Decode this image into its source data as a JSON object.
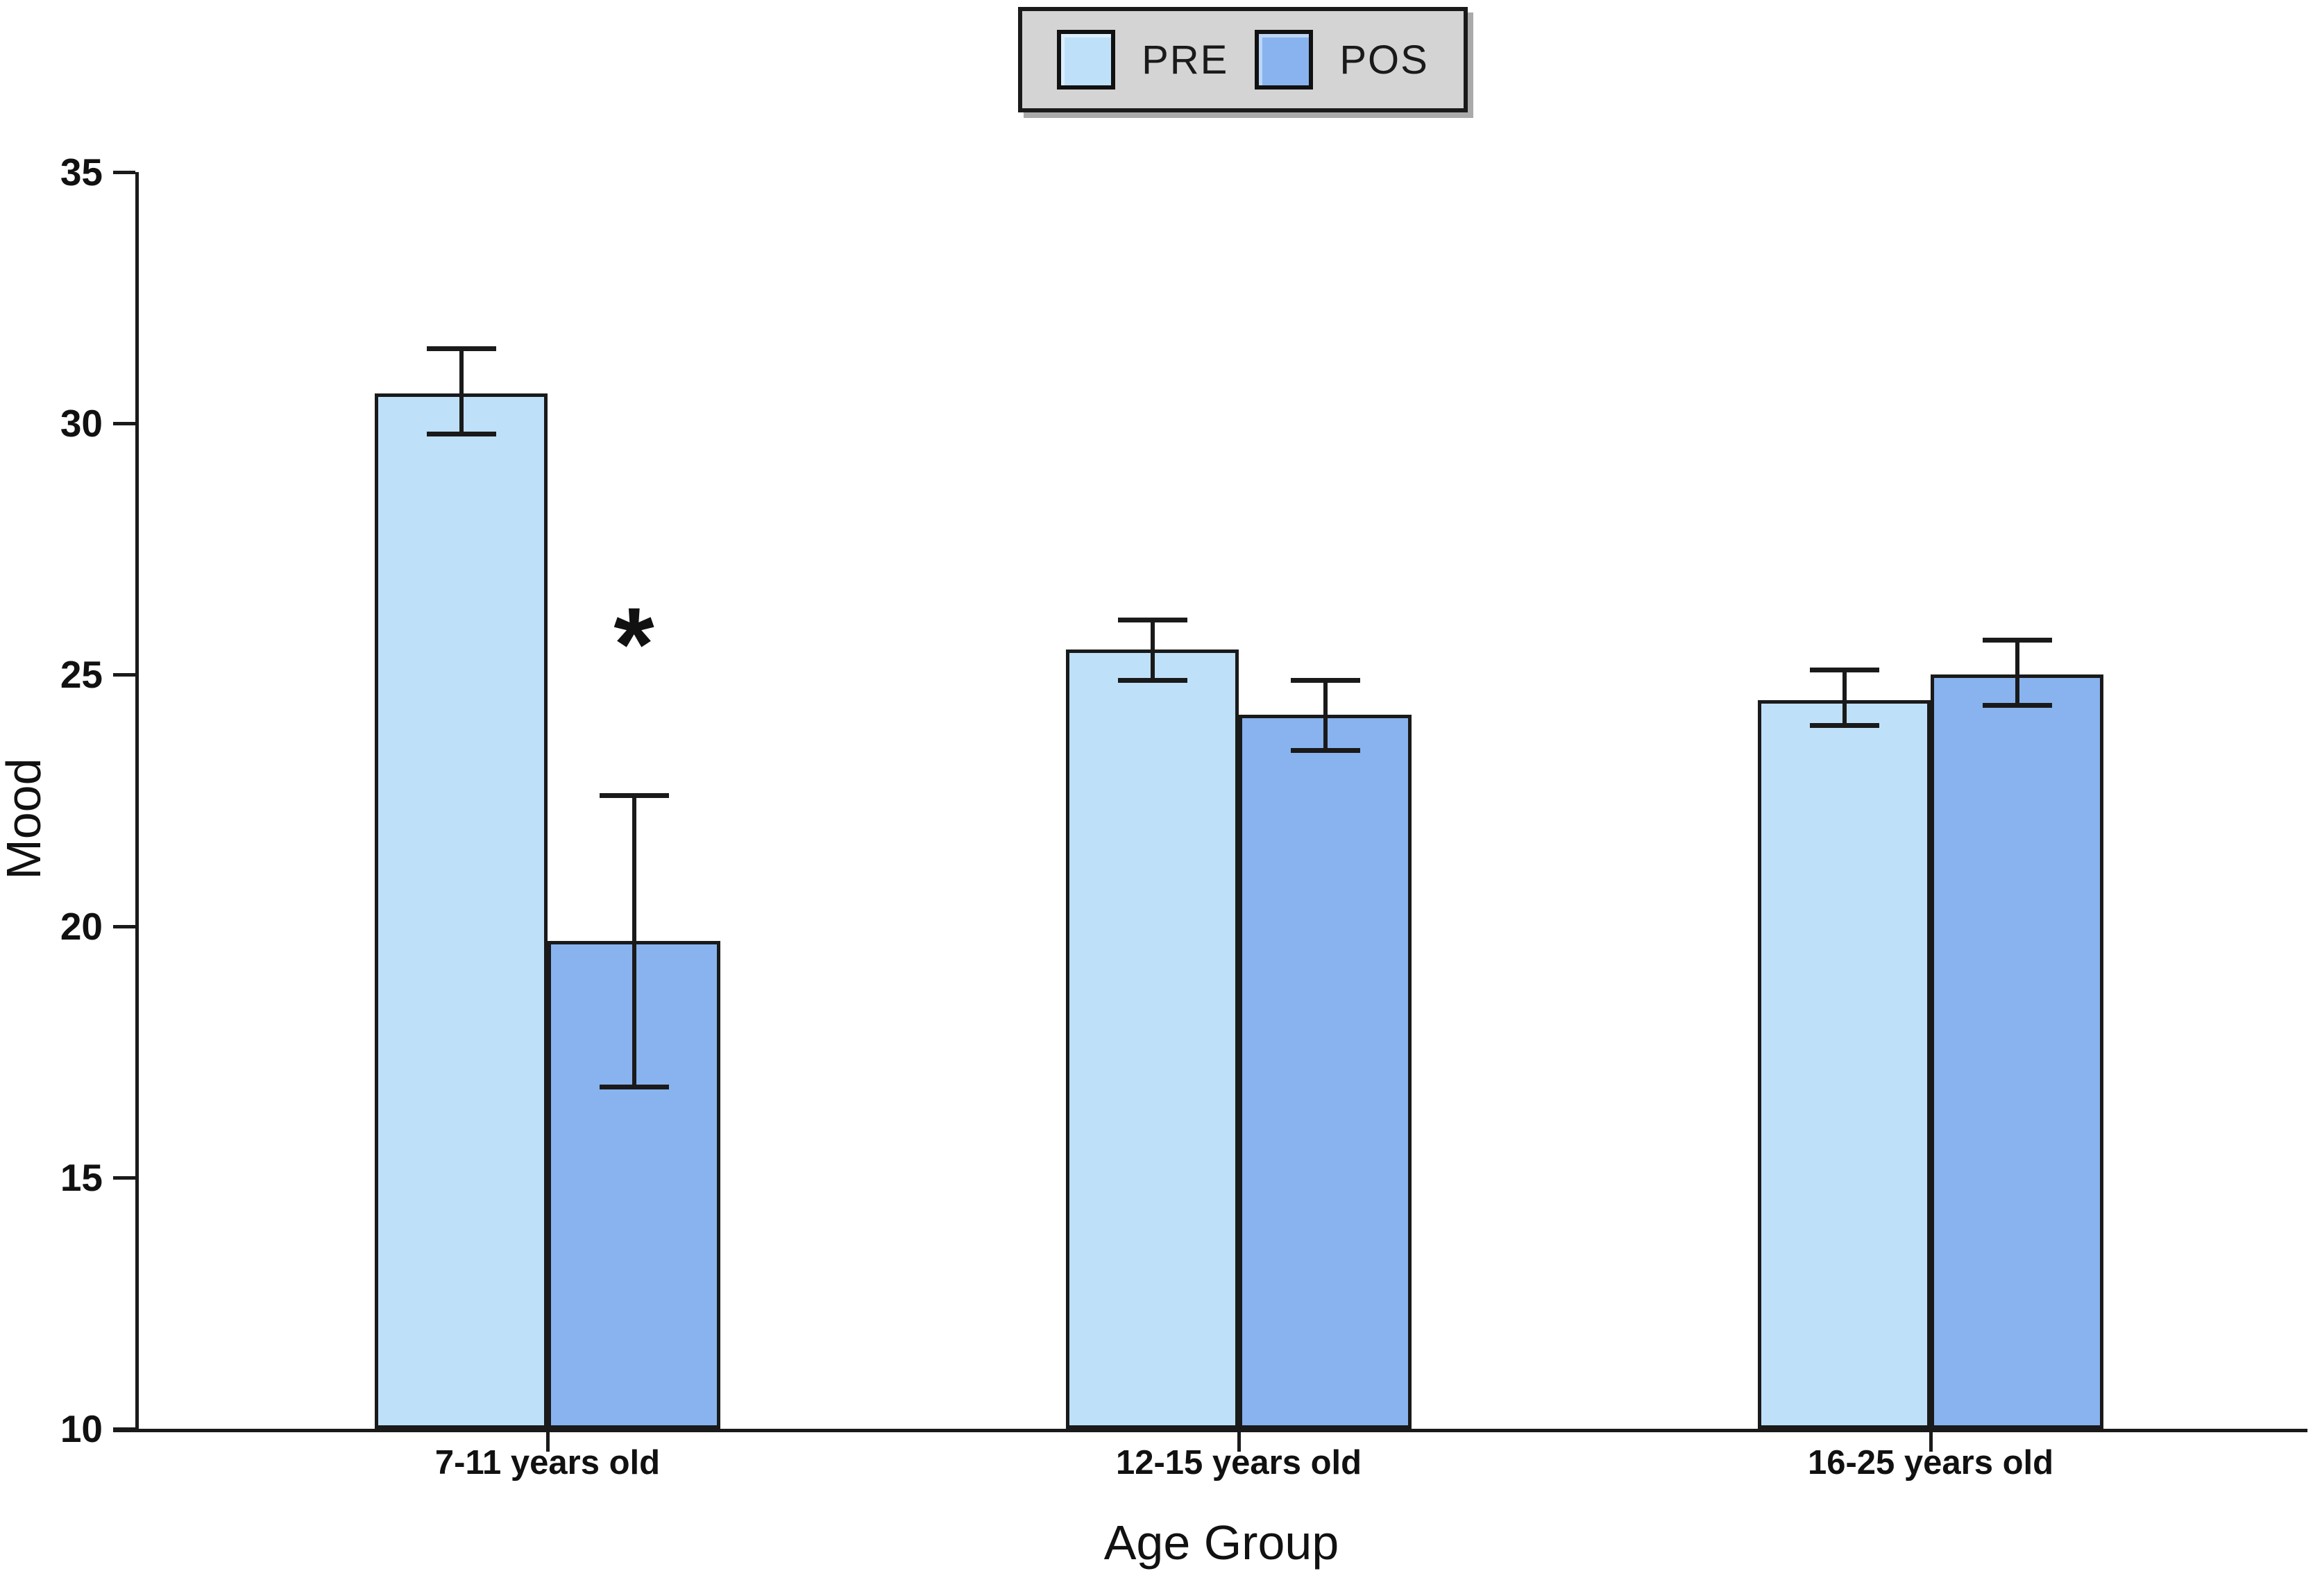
{
  "figure": {
    "background": "#ffffff",
    "text_color": "#111111"
  },
  "legend": {
    "position": "top-center",
    "background": "#d4d4d4",
    "border_color": "#1a1a1a",
    "items": [
      {
        "label": "PRE",
        "color": "#bfe0f9"
      },
      {
        "label": "POS",
        "color": "#88b3ee"
      }
    ]
  },
  "chart_data": {
    "type": "bar",
    "title": "",
    "xlabel": "Age Group",
    "ylabel": "Mood",
    "ylim": [
      10,
      35
    ],
    "yticks": [
      10,
      15,
      20,
      25,
      30,
      35
    ],
    "grid": false,
    "legend_position": "top-center",
    "categories": [
      "7-11 years old",
      "12-15 years old",
      "16-25 years old"
    ],
    "series": [
      {
        "name": "PRE",
        "color": "#bfe0f9",
        "values": [
          30.6,
          25.5,
          24.5
        ],
        "error_low": [
          29.8,
          24.9,
          24.0
        ],
        "error_high": [
          31.5,
          26.1,
          25.1
        ]
      },
      {
        "name": "POS",
        "color": "#88b3ee",
        "values": [
          19.7,
          24.2,
          25.0
        ],
        "error_low": [
          16.8,
          23.5,
          24.4
        ],
        "error_high": [
          22.6,
          24.9,
          25.7
        ]
      }
    ],
    "annotations": [
      {
        "text": "*",
        "meaning": "significance-marker",
        "category_index": 0,
        "series": "POS",
        "value": 25.6
      }
    ],
    "bar_border_color": "#1a1a1a",
    "error_bar_color": "#1a1a1a"
  }
}
